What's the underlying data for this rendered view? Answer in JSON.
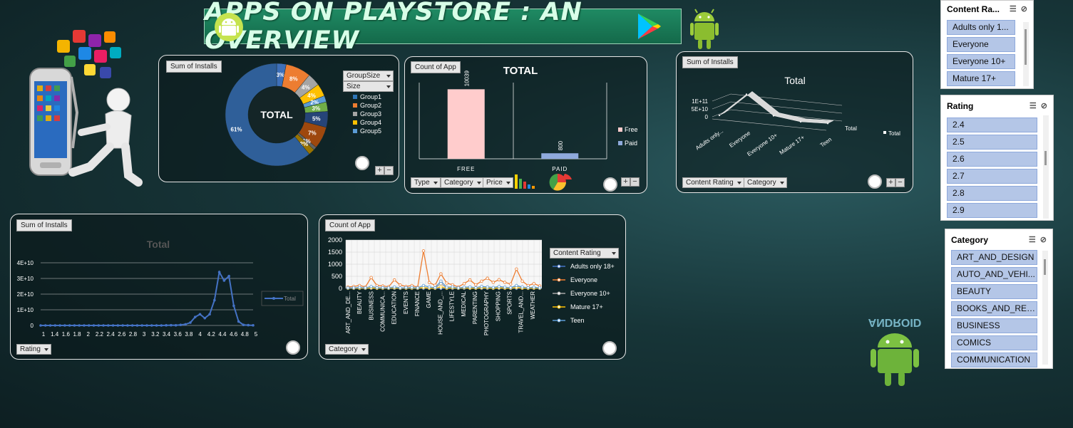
{
  "banner": {
    "title": "APPS ON PLAYSTORE : AN OVERVIEW"
  },
  "donut": {
    "field_label": "Sum of Installs",
    "center_label": "TOTAL",
    "legend_dropdowns": [
      "GroupSize",
      "Size"
    ],
    "legend": [
      {
        "name": "Group1",
        "color": "#2e75b6"
      },
      {
        "name": "Group2",
        "color": "#ed7d31"
      },
      {
        "name": "Group3",
        "color": "#a5a5a5"
      },
      {
        "name": "Group4",
        "color": "#ffc000"
      },
      {
        "name": "Group5",
        "color": "#5b9bd5"
      }
    ],
    "slices": [
      {
        "label": "3%",
        "value": 3,
        "color": "#3d6fb8"
      },
      {
        "label": "8%",
        "value": 8,
        "color": "#ed7d31"
      },
      {
        "label": "4%",
        "value": 4,
        "color": "#a5a5a5"
      },
      {
        "label": "4%",
        "value": 4,
        "color": "#ffc000"
      },
      {
        "label": "2%",
        "value": 2,
        "color": "#5b9bd5"
      },
      {
        "label": "3%",
        "value": 3,
        "color": "#70ad47"
      },
      {
        "label": "5%",
        "value": 5,
        "color": "#264478"
      },
      {
        "label": "7%",
        "value": 7,
        "color": "#9e480e"
      },
      {
        "label": "1%",
        "value": 1,
        "color": "#636363"
      },
      {
        "label": "2%",
        "value": 2,
        "color": "#997300"
      },
      {
        "label": "61%",
        "value": 61,
        "color": "#2f5f99"
      }
    ]
  },
  "bar": {
    "field_label": "Count of App",
    "title": "TOTAL",
    "categories": [
      "FREE",
      "PAID"
    ],
    "values": [
      10039,
      800
    ],
    "value_labels": [
      "10039",
      "800"
    ],
    "ymax": 11000,
    "colors": [
      "#ffcccc",
      "#8faadc"
    ],
    "legend": [
      "Free",
      "Paid"
    ],
    "dropdowns": [
      "Type",
      "Category",
      "Price"
    ]
  },
  "chart3d": {
    "field_label": "Sum of Installs",
    "title": "Total",
    "y_ticks": [
      "1E+11",
      "5E+10",
      "0"
    ],
    "categories": [
      "Adults only...",
      "Everyone",
      "Everyone 10+",
      "Mature 17+",
      "Teen"
    ],
    "values": [
      0.08,
      0.95,
      0.25,
      0.12,
      0.15
    ],
    "series_label": "Total",
    "legend": "Total",
    "dropdowns": [
      "Content Rating",
      "Category"
    ]
  },
  "line": {
    "field_label": "Sum of Installs",
    "title": "Total",
    "y_ticks": [
      "4E+10",
      "3E+10",
      "2E+10",
      "1E+10",
      "0"
    ],
    "x_ticks": [
      "1",
      "1.4",
      "1.6",
      "1.8",
      "2",
      "2.2",
      "2.4",
      "2.6",
      "2.8",
      "3",
      "3.2",
      "3.4",
      "3.6",
      "3.8",
      "4",
      "4.2",
      "4.4",
      "4.6",
      "4.8",
      "5"
    ],
    "values": [
      0,
      0,
      0,
      0,
      0,
      0,
      0,
      0,
      0,
      0,
      0,
      0,
      0,
      0,
      0,
      0,
      0,
      0,
      0,
      0,
      0,
      0,
      0,
      0,
      0,
      0,
      0.002,
      0.004,
      0.003,
      0.01,
      0.02,
      0.05,
      0.15,
      0.2,
      0.13,
      0.2,
      0.45,
      0.95,
      0.8,
      0.88,
      0.35,
      0.07,
      0.01,
      0.005,
      0.002
    ],
    "legend": "Total",
    "dropdown": "Rating"
  },
  "multiline": {
    "field_label": "Count of App",
    "y_ticks": [
      "2000",
      "1500",
      "1000",
      "500",
      "0"
    ],
    "categories": [
      "ART_AND_DE...",
      "BEAUTY",
      "BUSINESS",
      "COMMUNICA...",
      "EDUCATION",
      "EVENTS",
      "FINANCE",
      "GAME",
      "HOUSE_AND_...",
      "LIFESTYLE",
      "MEDICAL",
      "PARENTING",
      "PHOTOGRAPHY",
      "SHOPPING",
      "SPORTS",
      "TRAVEL_AND...",
      "WEATHER"
    ],
    "legend_dropdown": "Content Rating",
    "dropdown": "Category",
    "series": [
      {
        "name": "Adults only 18+",
        "color": "#4472c4",
        "values": [
          0,
          0,
          0,
          0,
          0,
          0,
          0,
          0,
          0,
          0,
          0,
          0,
          0,
          0,
          0,
          0,
          0,
          0,
          0,
          0,
          0,
          0,
          0,
          0,
          0,
          0,
          0,
          0,
          0,
          0,
          0,
          0,
          0,
          0
        ]
      },
      {
        "name": "Everyone",
        "color": "#ed7d31",
        "values": [
          60,
          80,
          120,
          60,
          450,
          120,
          100,
          70,
          350,
          140,
          80,
          120,
          50,
          1550,
          240,
          130,
          600,
          220,
          150,
          60,
          200,
          350,
          150,
          300,
          420,
          250,
          360,
          250,
          180,
          800,
          300,
          120,
          200,
          100
        ]
      },
      {
        "name": "Everyone 10+",
        "color": "#a5a5a5",
        "values": [
          10,
          10,
          20,
          10,
          30,
          10,
          10,
          10,
          20,
          10,
          10,
          20,
          10,
          40,
          30,
          10,
          200,
          20,
          30,
          10,
          20,
          30,
          10,
          40,
          30,
          10,
          60,
          20,
          10,
          100,
          30,
          10,
          20,
          10
        ]
      },
      {
        "name": "Mature 17+",
        "color": "#ffc000",
        "values": [
          5,
          5,
          10,
          5,
          20,
          5,
          10,
          5,
          20,
          5,
          10,
          10,
          5,
          30,
          10,
          5,
          60,
          10,
          20,
          5,
          20,
          10,
          5,
          20,
          20,
          5,
          20,
          10,
          5,
          30,
          10,
          5,
          10,
          5
        ]
      },
      {
        "name": "Teen",
        "color": "#5b9bd5",
        "values": [
          20,
          20,
          40,
          20,
          80,
          30,
          30,
          20,
          60,
          20,
          30,
          40,
          20,
          120,
          60,
          30,
          300,
          50,
          60,
          20,
          50,
          60,
          30,
          80,
          60,
          40,
          80,
          50,
          30,
          120,
          60,
          30,
          50,
          20
        ]
      }
    ]
  },
  "slicers": {
    "content_rating": {
      "title": "Content Ra...",
      "items": [
        "Adults only 1...",
        "Everyone",
        "Everyone 10+",
        "Mature 17+"
      ]
    },
    "rating": {
      "title": "Rating",
      "items": [
        "2.4",
        "2.5",
        "2.6",
        "2.7",
        "2.8",
        "2.9"
      ]
    },
    "category": {
      "title": "Category",
      "items": [
        "ART_AND_DESIGN",
        "AUTO_AND_VEHI...",
        "BEAUTY",
        "BOOKS_AND_REF...",
        "BUSINESS",
        "COMICS",
        "COMMUNICATION"
      ]
    }
  },
  "decor": {
    "android_logo_text": "ANDROID"
  }
}
